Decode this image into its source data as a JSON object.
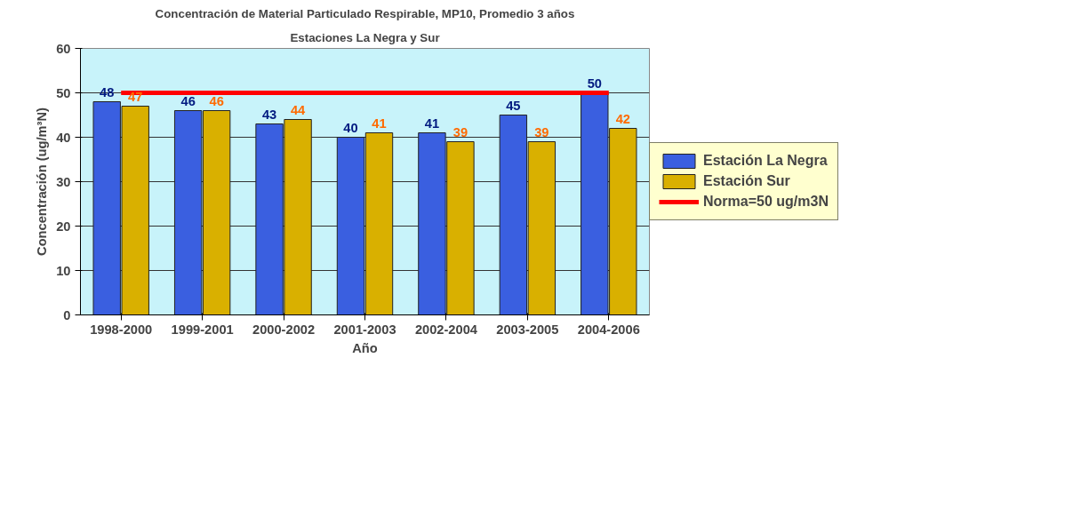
{
  "chart_data": {
    "type": "bar",
    "title": "Concentración de Material Particulado Respirable, MP10, Promedio 3 años",
    "subtitle": "Estaciones La Negra y Sur",
    "xlabel": "Año",
    "ylabel": "Concentración (ug/m³N)",
    "categories": [
      "1998-2000",
      "1999-2001",
      "2000-2002",
      "2001-2003",
      "2002-2004",
      "2003-2005",
      "2004-2006"
    ],
    "series": [
      {
        "name": "Estación La Negra",
        "color": "#3a5fe0",
        "values": [
          48,
          46,
          43,
          40,
          41,
          45,
          50
        ],
        "value_labels": [
          "48",
          "46",
          "43",
          "40",
          "41",
          "45",
          "50"
        ]
      },
      {
        "name": "Estación Sur",
        "color": "#d9b000",
        "values": [
          47,
          46,
          44,
          41,
          39,
          39,
          42
        ],
        "value_labels": [
          "47",
          "46",
          "44",
          "41",
          "39",
          "39",
          "42"
        ]
      },
      {
        "name": "Norma=50 ug/m3N",
        "color": "#ff0000",
        "type": "line",
        "values": [
          50,
          50,
          50,
          50,
          50,
          50,
          50
        ]
      }
    ],
    "ylim": [
      0,
      60
    ],
    "yticks": [
      0,
      10,
      20,
      30,
      40,
      50,
      60
    ],
    "grid": "y",
    "legend": "right"
  }
}
